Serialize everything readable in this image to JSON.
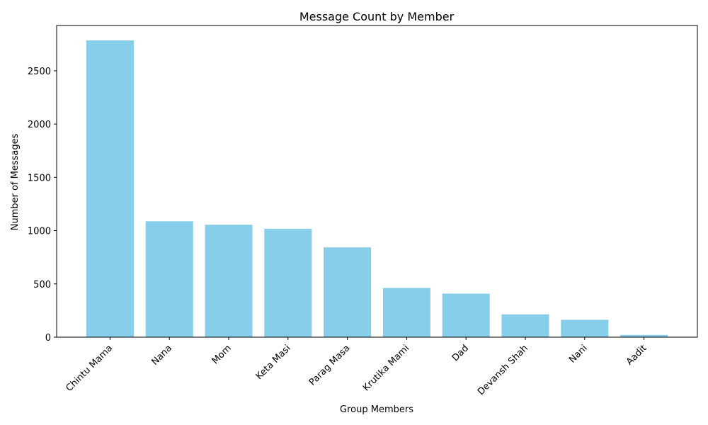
{
  "chart_data": {
    "type": "bar",
    "title": "Message Count by Member",
    "xlabel": "Group Members",
    "ylabel": "Number of Messages",
    "categories": [
      "Chintu Mama",
      "Nana",
      "Mom",
      "Keta Masi",
      "Parag Masa",
      "Krutika Mami",
      "Dad",
      "Devansh Shah",
      "Nani",
      "Aadit"
    ],
    "values": [
      2785,
      1088,
      1055,
      1017,
      843,
      462,
      409,
      214,
      163,
      21
    ],
    "ylim": [
      0,
      2925
    ],
    "yticks": [
      0,
      500,
      1000,
      1500,
      2000,
      2500
    ],
    "grid": false,
    "legend": "none",
    "bar_color": "#87CEEB"
  }
}
